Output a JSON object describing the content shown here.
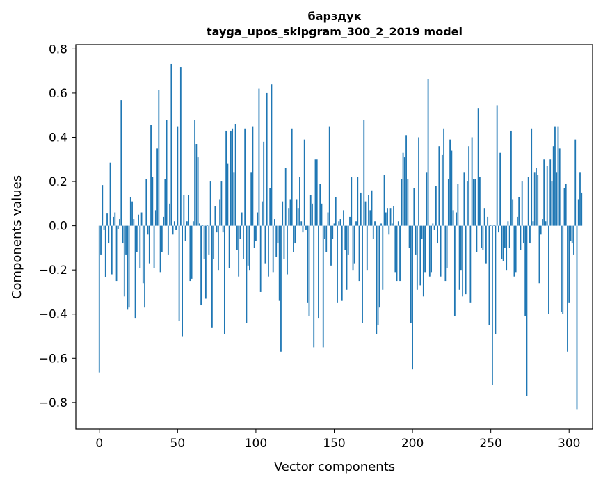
{
  "chart_data": {
    "type": "bar",
    "title_line1": "барздук",
    "title_line2": "tayga_upos_skipgram_300_2_2019 model",
    "xlabel": "Vector components",
    "ylabel": "Components values",
    "xlim": [
      -15,
      315
    ],
    "ylim": [
      -0.92,
      0.82
    ],
    "xticks": [
      0,
      50,
      100,
      150,
      200,
      250,
      300
    ],
    "yticks": [
      -0.8,
      -0.6,
      -0.4,
      -0.2,
      0.0,
      0.2,
      0.4,
      0.6,
      0.8
    ],
    "ytick_labels": [
      "−0.8",
      "−0.6",
      "−0.4",
      "−0.2",
      "0.0",
      "0.2",
      "0.4",
      "0.6",
      "0.8"
    ],
    "bar_color": "#1f77b4",
    "values": [
      -0.664,
      -0.13,
      0.184,
      -0.02,
      -0.231,
      0.055,
      -0.08,
      0.286,
      -0.22,
      0.04,
      0.06,
      -0.25,
      -0.015,
      0.03,
      0.568,
      -0.08,
      -0.32,
      -0.13,
      -0.38,
      -0.37,
      0.13,
      0.11,
      0.03,
      -0.42,
      -0.12,
      0.05,
      -0.19,
      0.06,
      -0.26,
      -0.37,
      0.21,
      -0.04,
      -0.17,
      0.455,
      0.22,
      -0.19,
      0.07,
      0.35,
      0.615,
      -0.21,
      -0.12,
      0.04,
      0.21,
      0.48,
      -0.13,
      0.1,
      0.732,
      -0.04,
      0.02,
      -0.02,
      0.45,
      -0.43,
      0.716,
      -0.5,
      0.14,
      -0.07,
      0.02,
      0.14,
      -0.25,
      -0.24,
      0.02,
      0.48,
      0.37,
      0.31,
      0.01,
      -0.36,
      0.005,
      -0.15,
      -0.33,
      0.005,
      -0.13,
      0.2,
      -0.46,
      -0.15,
      0.09,
      -0.03,
      -0.2,
      0.12,
      0.2,
      -0.03,
      -0.49,
      0.43,
      0.28,
      -0.19,
      0.43,
      0.44,
      0.24,
      0.46,
      -0.11,
      -0.23,
      -0.06,
      0.06,
      -0.15,
      0.44,
      -0.44,
      -0.18,
      -0.2,
      0.24,
      0.45,
      -0.1,
      -0.07,
      0.06,
      0.62,
      -0.3,
      0.11,
      0.38,
      -0.17,
      0.6,
      -0.23,
      0.17,
      0.64,
      -0.21,
      0.03,
      -0.14,
      -0.08,
      -0.34,
      -0.57,
      0.11,
      -0.15,
      0.26,
      -0.22,
      0.08,
      0.12,
      0.44,
      -0.12,
      -0.08,
      0.12,
      0.08,
      0.22,
      0.02,
      -0.03,
      0.39,
      -0.02,
      -0.35,
      -0.41,
      0.14,
      0.1,
      -0.55,
      0.3,
      0.3,
      -0.42,
      0.19,
      0.1,
      -0.55,
      -0.06,
      -0.12,
      0.06,
      0.45,
      -0.18,
      -0.06,
      0.01,
      0.13,
      -0.35,
      0.02,
      0.03,
      -0.34,
      0.07,
      -0.11,
      -0.29,
      -0.13,
      0.04,
      0.22,
      -0.2,
      -0.17,
      0.02,
      0.22,
      -0.25,
      0.15,
      -0.44,
      0.48,
      0.11,
      -0.2,
      0.14,
      0.07,
      0.16,
      -0.06,
      0.02,
      -0.49,
      -0.45,
      -0.37,
      0.01,
      -0.29,
      0.23,
      0.06,
      0.08,
      -0.04,
      0.08,
      0.01,
      0.09,
      -0.21,
      -0.25,
      0.02,
      -0.25,
      0.21,
      0.33,
      0.31,
      0.41,
      0.21,
      -0.1,
      -0.44,
      -0.65,
      0.17,
      -0.13,
      -0.29,
      0.4,
      -0.27,
      -0.06,
      -0.32,
      -0.21,
      0.24,
      0.665,
      -0.23,
      -0.21,
      0.01,
      -0.02,
      0.18,
      -0.08,
      0.36,
      -0.23,
      0.32,
      0.44,
      -0.25,
      -0.19,
      0.21,
      0.39,
      0.34,
      0.07,
      -0.41,
      0.06,
      0.19,
      -0.29,
      -0.2,
      -0.32,
      0.24,
      -0.31,
      0.2,
      0.36,
      -0.35,
      0.4,
      0.21,
      0.21,
      -0.12,
      0.53,
      0.22,
      -0.1,
      -0.11,
      0.08,
      -0.17,
      0.04,
      -0.45,
      0.005,
      -0.72,
      0.005,
      -0.49,
      0.545,
      -0.03,
      0.33,
      -0.15,
      -0.16,
      -0.1,
      -0.2,
      0.02,
      -0.1,
      0.43,
      0.12,
      -0.23,
      -0.21,
      0.04,
      0.13,
      -0.11,
      0.2,
      -0.08,
      -0.41,
      -0.77,
      0.22,
      -0.08,
      0.44,
      0.02,
      0.24,
      0.26,
      0.23,
      -0.26,
      -0.04,
      0.03,
      0.3,
      0.02,
      0.27,
      -0.4,
      0.3,
      0.2,
      0.36,
      0.45,
      0.24,
      0.45,
      0.35,
      -0.39,
      -0.4,
      0.17,
      0.19,
      -0.57,
      -0.35,
      -0.07,
      -0.08,
      -0.13,
      0.39,
      -0.83,
      0.12,
      0.24,
      0.15
    ]
  }
}
